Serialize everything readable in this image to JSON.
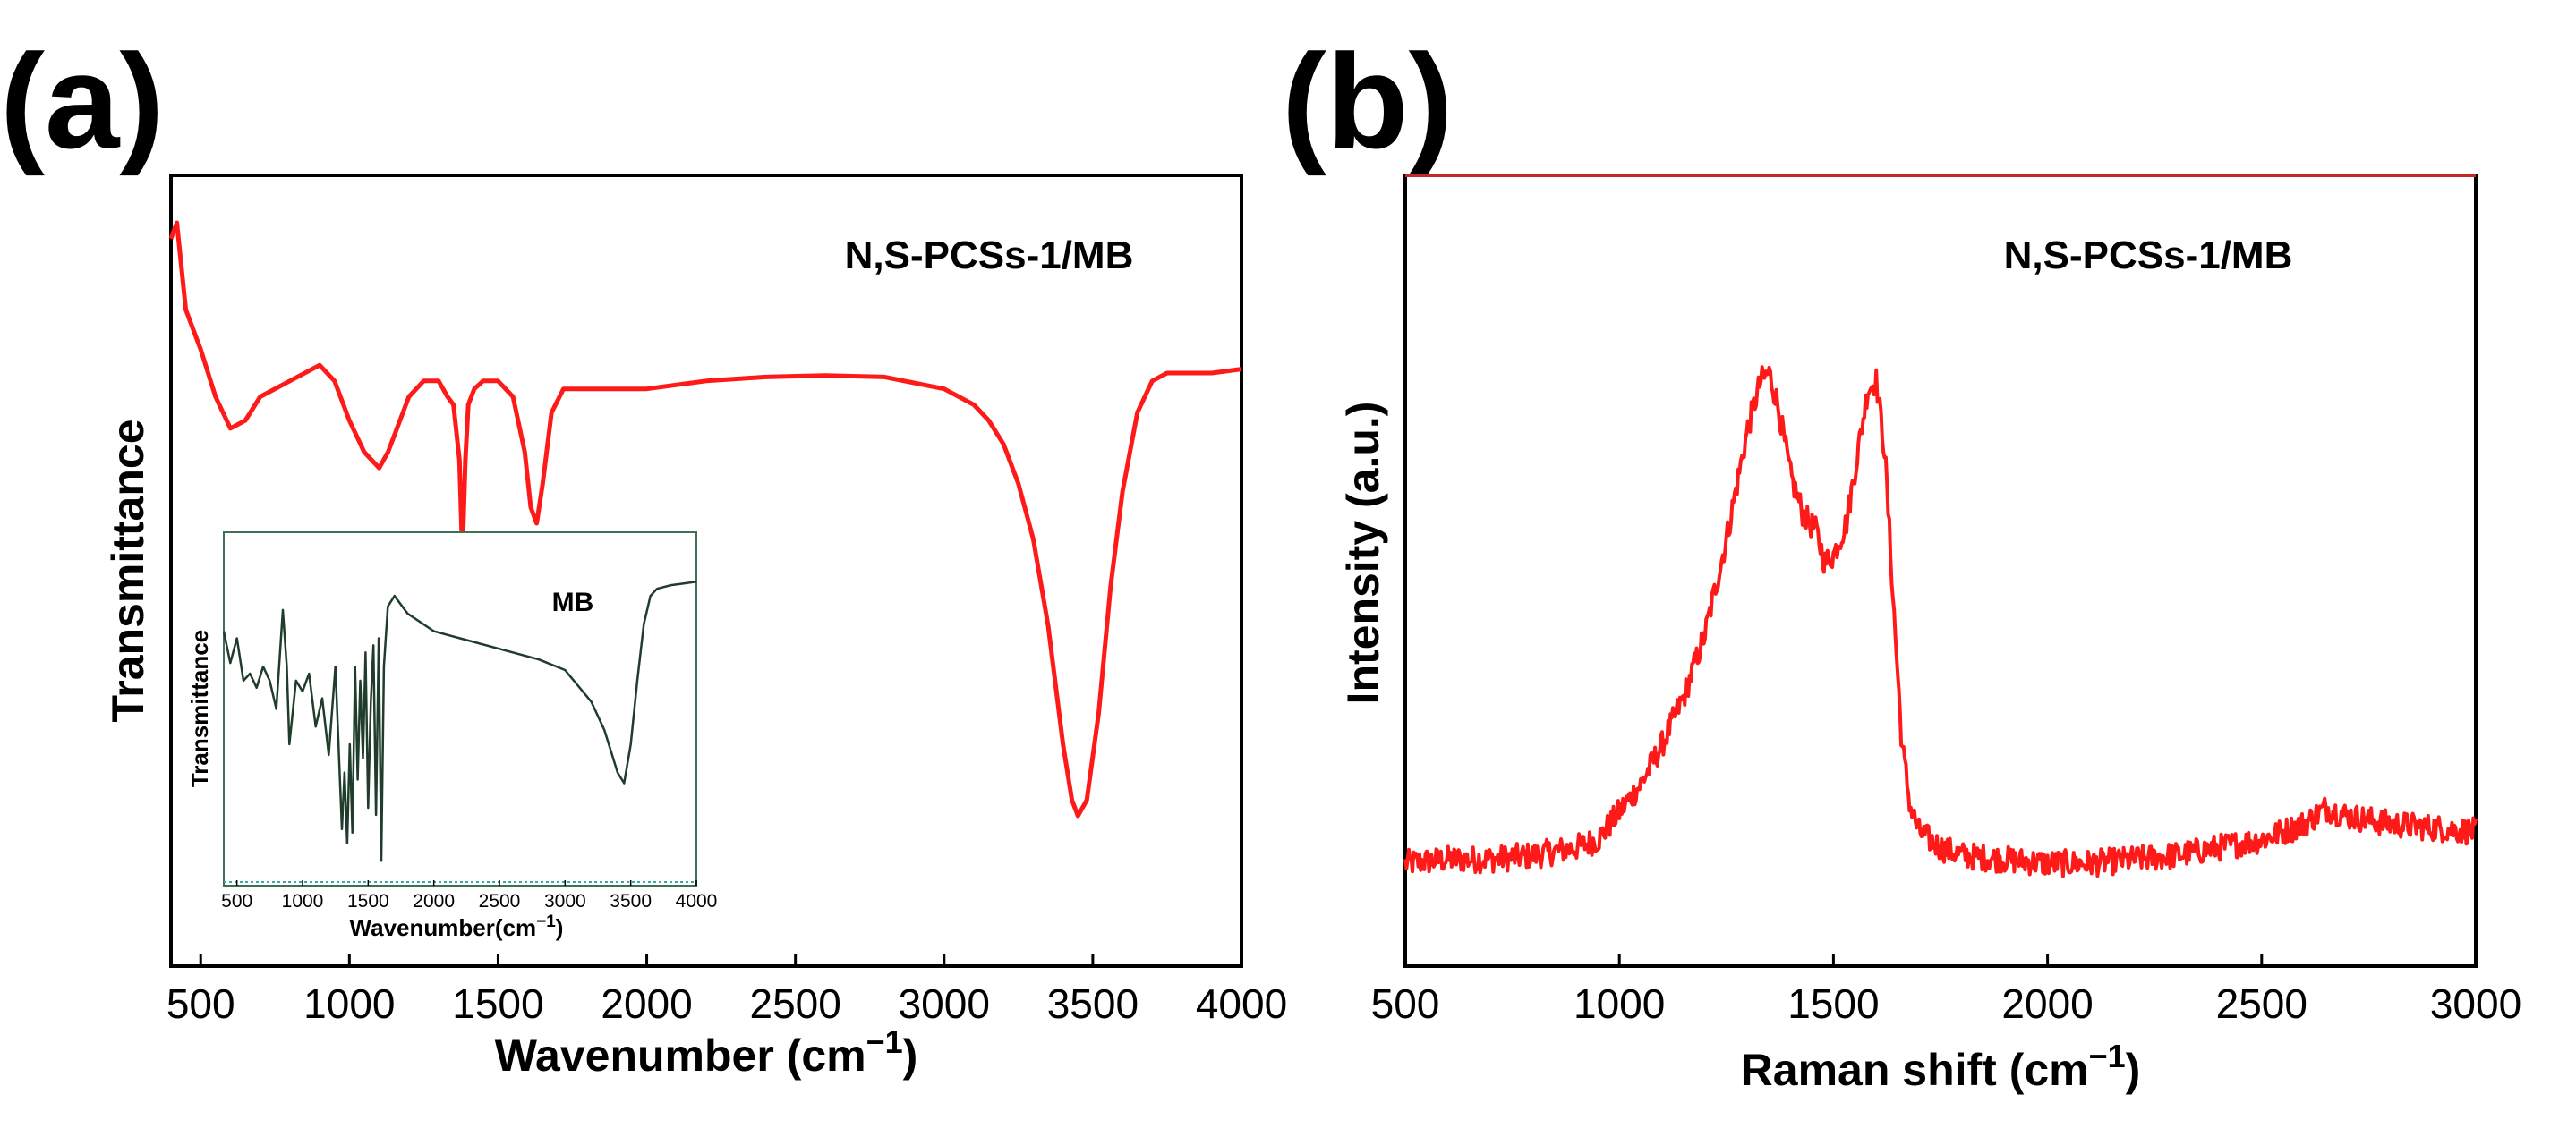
{
  "chart_data": [
    {
      "panel": "(a)",
      "type": "line",
      "title": "N,S-PCSs-1/MB",
      "xlabel": "Wavenumber (cm",
      "xlabel_sup": "−1",
      "xlabel_close": ")",
      "ylabel": "Transmittance",
      "xlim": [
        400,
        4000
      ],
      "ylim": [
        0,
        100
      ],
      "xticks": [
        500,
        1000,
        1500,
        2000,
        2500,
        3000,
        3500,
        4000
      ],
      "yticks": [],
      "color": "#ff1a1a",
      "series": [
        {
          "name": "N,S-PCSs-1/MB",
          "x": [
            400,
            420,
            450,
            500,
            550,
            600,
            650,
            700,
            800,
            900,
            950,
            1000,
            1050,
            1100,
            1130,
            1160,
            1200,
            1250,
            1300,
            1330,
            1350,
            1370,
            1380,
            1390,
            1400,
            1420,
            1450,
            1500,
            1550,
            1590,
            1610,
            1630,
            1650,
            1680,
            1720,
            1800,
            1900,
            2000,
            2200,
            2400,
            2600,
            2800,
            3000,
            3100,
            3150,
            3200,
            3250,
            3300,
            3350,
            3400,
            3430,
            3450,
            3480,
            3520,
            3560,
            3600,
            3650,
            3700,
            3750,
            3800,
            3900,
            4000
          ],
          "y": [
            92,
            94,
            83,
            78,
            72,
            68,
            69,
            72,
            74,
            76,
            74,
            69,
            65,
            63,
            65,
            68,
            72,
            74,
            74,
            72,
            71,
            64,
            52,
            64,
            71,
            73,
            74,
            74,
            72,
            65,
            58,
            56,
            61,
            70,
            73,
            73,
            73,
            73,
            74,
            74.5,
            74.7,
            74.5,
            73,
            71,
            69,
            66,
            61,
            54,
            43,
            28,
            21,
            19,
            21,
            32,
            48,
            60,
            70,
            74,
            75,
            75,
            75,
            75.5
          ]
        }
      ],
      "inset": {
        "type": "line",
        "annotation": "MB",
        "xlabel": "Wavenumber(cm",
        "xlabel_sup": "−1",
        "xlabel_close": ")",
        "ylabel": "Transmittance",
        "xlim": [
          400,
          4000
        ],
        "ylim": [
          0,
          100
        ],
        "xticks": [
          500,
          1000,
          1500,
          2000,
          2500,
          3000,
          3500,
          4000
        ],
        "color": "#1f3d2a",
        "series": [
          {
            "name": "MB",
            "x": [
              400,
              450,
              500,
              550,
              600,
              650,
              700,
              750,
              800,
              850,
              880,
              900,
              950,
              1000,
              1050,
              1100,
              1150,
              1200,
              1250,
              1300,
              1320,
              1340,
              1360,
              1380,
              1400,
              1420,
              1440,
              1460,
              1480,
              1500,
              1520,
              1540,
              1560,
              1580,
              1600,
              1620,
              1650,
              1700,
              1800,
              2000,
              2200,
              2500,
              2800,
              3000,
              3200,
              3300,
              3400,
              3450,
              3500,
              3550,
              3600,
              3650,
              3700,
              3800,
              4000
            ],
            "y": [
              72,
              63,
              70,
              58,
              60,
              56,
              62,
              58,
              50,
              78,
              62,
              40,
              58,
              55,
              60,
              45,
              53,
              37,
              62,
              16,
              32,
              12,
              40,
              15,
              62,
              30,
              58,
              36,
              66,
              22,
              52,
              68,
              20,
              70,
              7,
              62,
              79,
              82,
              77,
              72,
              70,
              67,
              64,
              61,
              52,
              44,
              32,
              29,
              40,
              58,
              74,
              82,
              84,
              85,
              86
            ]
          }
        ]
      }
    },
    {
      "panel": "(b)",
      "type": "line",
      "title": "N,S-PCSs-1/MB",
      "xlabel": "Raman shift (cm",
      "xlabel_sup": "−1",
      "xlabel_close": ")",
      "ylabel": "Intensity (a.u.)",
      "xlim": [
        500,
        3000
      ],
      "ylim": [
        0,
        100
      ],
      "xticks": [
        500,
        1000,
        1500,
        2000,
        2500,
        3000
      ],
      "yticks": [],
      "color": "#ff1a1a",
      "series": [
        {
          "name": "N,S-PCSs-1/MB",
          "x": [
            500,
            600,
            700,
            800,
            900,
            950,
            1000,
            1050,
            1100,
            1150,
            1200,
            1250,
            1300,
            1330,
            1350,
            1370,
            1400,
            1430,
            1460,
            1480,
            1500,
            1530,
            1560,
            1580,
            1600,
            1620,
            1640,
            1660,
            1680,
            1700,
            1750,
            1800,
            1900,
            2000,
            2100,
            2200,
            2300,
            2400,
            2500,
            2600,
            2650,
            2700,
            2800,
            2900,
            3000
          ],
          "y": [
            13,
            13.5,
            13.5,
            14,
            15,
            16,
            19.5,
            23,
            28,
            34,
            42,
            54,
            68,
            74,
            75,
            71,
            62,
            57,
            55,
            51,
            52,
            56,
            66,
            73,
            74,
            65,
            46,
            28,
            20,
            17,
            15,
            14,
            13.5,
            13,
            13,
            13.5,
            14,
            15,
            16,
            18,
            20,
            19,
            18,
            17.5,
            17
          ]
        }
      ]
    }
  ]
}
